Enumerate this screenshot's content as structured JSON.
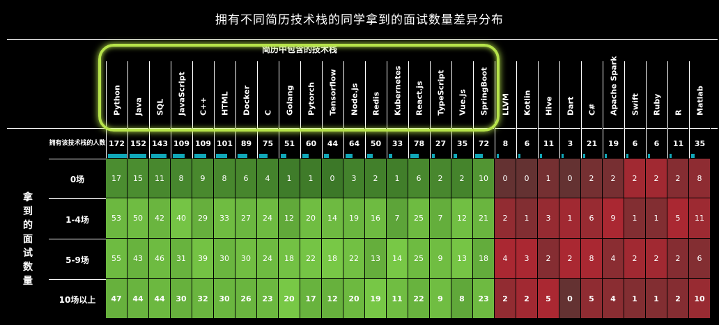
{
  "chart_data": {
    "type": "heatmap",
    "title": "拥有不同简历技术栈的同学拿到的面试数量差异分布",
    "group_label": "简历中包含的技术栈",
    "side_label": "拿到的面试数量",
    "count_row_label": "拥有该技术栈的人数",
    "columns": [
      "Python",
      "Java",
      "SQL",
      "JavaScript",
      "C++",
      "HTML",
      "Docker",
      "C",
      "Golang",
      "Pytorch",
      "Tensorflow",
      "Node.js",
      "Redis",
      "Kubernetes",
      "React.js",
      "TypeScript",
      "Vue.js",
      "SpringBoot",
      "LLVM",
      "Kotlin",
      "Hive",
      "Dart",
      "C#",
      "Apache Spark",
      "Swift",
      "Ruby",
      "R",
      "Matlab"
    ],
    "counts": [
      172,
      152,
      143,
      109,
      109,
      101,
      89,
      75,
      51,
      60,
      44,
      64,
      50,
      33,
      78,
      27,
      35,
      72,
      8,
      6,
      11,
      3,
      21,
      19,
      6,
      6,
      11,
      35
    ],
    "rows": [
      {
        "label": "0场",
        "values": [
          17,
          15,
          11,
          8,
          9,
          8,
          6,
          4,
          1,
          1,
          0,
          3,
          2,
          1,
          6,
          2,
          2,
          10,
          0,
          0,
          1,
          0,
          2,
          2,
          2,
          2,
          2,
          8
        ]
      },
      {
        "label": "1-4场",
        "values": [
          53,
          50,
          42,
          40,
          29,
          33,
          27,
          24,
          12,
          20,
          14,
          19,
          16,
          7,
          25,
          7,
          12,
          21,
          2,
          1,
          3,
          1,
          6,
          9,
          1,
          1,
          5,
          11
        ]
      },
      {
        "label": "5-9场",
        "values": [
          55,
          43,
          46,
          31,
          39,
          30,
          30,
          24,
          18,
          22,
          18,
          22,
          13,
          14,
          25,
          9,
          13,
          18,
          4,
          3,
          2,
          2,
          8,
          4,
          2,
          2,
          2,
          6
        ]
      },
      {
        "label": "10场以上",
        "values": [
          47,
          44,
          44,
          30,
          32,
          30,
          26,
          23,
          20,
          17,
          12,
          20,
          19,
          11,
          22,
          9,
          8,
          23,
          2,
          2,
          5,
          0,
          5,
          4,
          1,
          1,
          2,
          10
        ]
      }
    ],
    "highlighted_columns": 18,
    "colors": {
      "high": "#7fcf4d",
      "low": "#b0202b",
      "neutral": "#4a7a3a",
      "bar": "#10a7b8"
    }
  }
}
